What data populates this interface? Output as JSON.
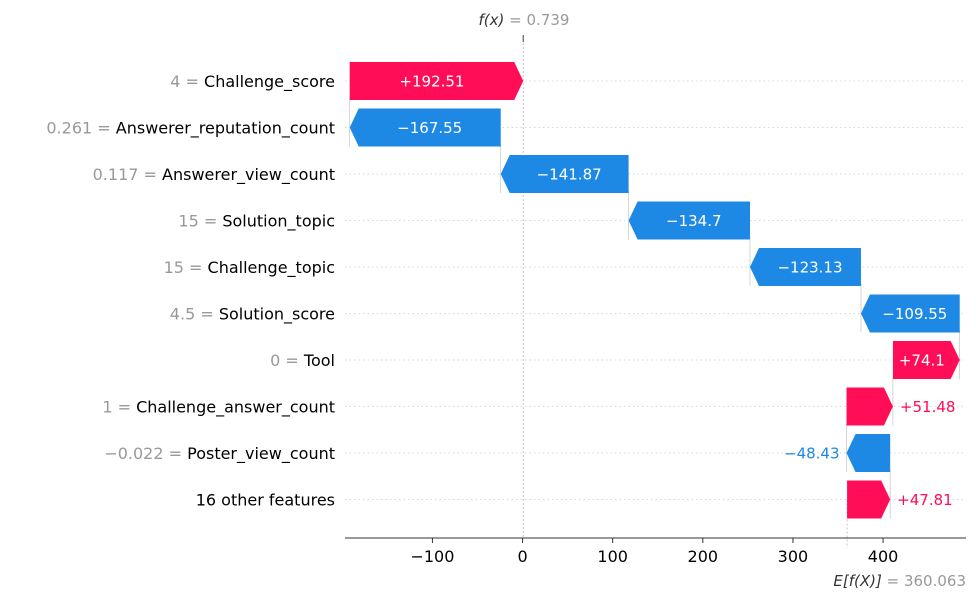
{
  "chart_data": {
    "type": "waterfall",
    "title": "",
    "fx_label": "f(x)",
    "fx_value": "0.739",
    "base_label": "E[f(X)]",
    "base_value_text": "360.063",
    "base_value": 360.063,
    "final_value": 0.739,
    "x_ticks": [
      -100,
      0,
      100,
      200,
      300,
      400
    ],
    "x_tick_labels": [
      "−100",
      "0",
      "100",
      "200",
      "300",
      "400"
    ],
    "xlim": [
      -197,
      492
    ],
    "colors": {
      "positive": "#ff0d57",
      "negative": "#1e88e5"
    },
    "features": [
      {
        "value_text": "4",
        "name": "Challenge_score",
        "contribution": 192.51,
        "label": "+192.51"
      },
      {
        "value_text": "0.261",
        "name": "Answerer_reputation_count",
        "contribution": -167.55,
        "label": "−167.55"
      },
      {
        "value_text": "0.117",
        "name": "Answerer_view_count",
        "contribution": -141.87,
        "label": "−141.87"
      },
      {
        "value_text": "15",
        "name": "Solution_topic",
        "contribution": -134.7,
        "label": "−134.7"
      },
      {
        "value_text": "15",
        "name": "Challenge_topic",
        "contribution": -123.13,
        "label": "−123.13"
      },
      {
        "value_text": "4.5",
        "name": "Solution_score",
        "contribution": -109.55,
        "label": "−109.55"
      },
      {
        "value_text": "0",
        "name": "Tool",
        "contribution": 74.1,
        "label": "+74.1"
      },
      {
        "value_text": "1",
        "name": "Challenge_answer_count",
        "contribution": 51.48,
        "label": "+51.48"
      },
      {
        "value_text": "−0.022",
        "name": "Poster_view_count",
        "contribution": -48.43,
        "label": "−48.43"
      },
      {
        "value_text": "",
        "name": "16 other features",
        "contribution": 47.81,
        "label": "+47.81"
      }
    ]
  }
}
